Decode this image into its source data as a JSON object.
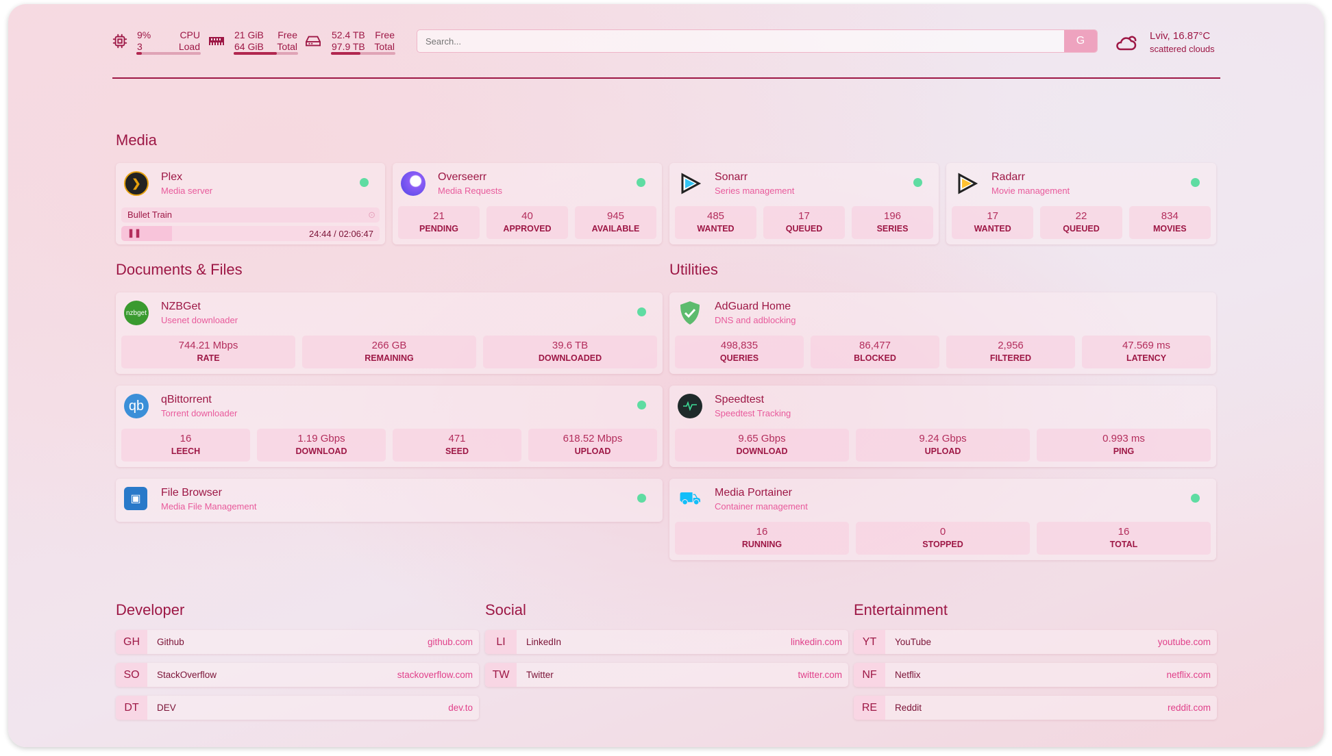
{
  "resources": {
    "cpu": {
      "icon": "cpu-icon",
      "value": "9%",
      "value2": "3",
      "label": "CPU",
      "label2": "Load",
      "percent": 9
    },
    "memory": {
      "icon": "memory-icon",
      "value": "21 GiB",
      "value2": "64 GiB",
      "label": "Free",
      "label2": "Total",
      "percent": 67
    },
    "disk": {
      "icon": "disk-icon",
      "value": "52.4 TB",
      "value2": "97.9 TB",
      "label": "Free",
      "label2": "Total",
      "percent": 46
    }
  },
  "search": {
    "placeholder": "Search...",
    "button": "G"
  },
  "weather": {
    "icon": "cloud-sun-icon",
    "location": "Lviv, 16.87°C",
    "condition": "scattered clouds"
  },
  "groups": {
    "media": "Media",
    "docs": "Documents & Files",
    "utilities": "Utilities",
    "developer": "Developer",
    "social": "Social",
    "entertainment": "Entertainment"
  },
  "services": {
    "plex": {
      "name": "Plex",
      "desc": "Media server",
      "status": "up",
      "now_playing": "Bullet Train",
      "time": "24:44 / 02:06:47",
      "progress": 19.5
    },
    "overseerr": {
      "name": "Overseerr",
      "desc": "Media Requests",
      "status": "up",
      "stats": [
        {
          "v": "21",
          "k": "PENDING"
        },
        {
          "v": "40",
          "k": "APPROVED"
        },
        {
          "v": "945",
          "k": "AVAILABLE"
        }
      ]
    },
    "sonarr": {
      "name": "Sonarr",
      "desc": "Series management",
      "status": "up",
      "stats": [
        {
          "v": "485",
          "k": "WANTED"
        },
        {
          "v": "17",
          "k": "QUEUED"
        },
        {
          "v": "196",
          "k": "SERIES"
        }
      ]
    },
    "radarr": {
      "name": "Radarr",
      "desc": "Movie management",
      "status": "up",
      "stats": [
        {
          "v": "17",
          "k": "WANTED"
        },
        {
          "v": "22",
          "k": "QUEUED"
        },
        {
          "v": "834",
          "k": "MOVIES"
        }
      ]
    },
    "nzbget": {
      "name": "NZBGet",
      "desc": "Usenet downloader",
      "icon_text": "nzbget",
      "status": "up",
      "stats": [
        {
          "v": "744.21 Mbps",
          "k": "RATE"
        },
        {
          "v": "266 GB",
          "k": "REMAINING"
        },
        {
          "v": "39.6 TB",
          "k": "DOWNLOADED"
        }
      ]
    },
    "qbittorrent": {
      "name": "qBittorrent",
      "desc": "Torrent downloader",
      "icon_text": "qb",
      "status": "up",
      "stats": [
        {
          "v": "16",
          "k": "LEECH"
        },
        {
          "v": "1.19 Gbps",
          "k": "DOWNLOAD"
        },
        {
          "v": "471",
          "k": "SEED"
        },
        {
          "v": "618.52 Mbps",
          "k": "UPLOAD"
        }
      ]
    },
    "filebrowser": {
      "name": "File Browser",
      "desc": "Media File Management",
      "status": "up"
    },
    "adguard": {
      "name": "AdGuard Home",
      "desc": "DNS and adblocking",
      "stats": [
        {
          "v": "498,835",
          "k": "QUERIES"
        },
        {
          "v": "86,477",
          "k": "BLOCKED"
        },
        {
          "v": "2,956",
          "k": "FILTERED"
        },
        {
          "v": "47.569 ms",
          "k": "LATENCY"
        }
      ]
    },
    "speedtest": {
      "name": "Speedtest",
      "desc": "Speedtest Tracking",
      "stats": [
        {
          "v": "9.65 Gbps",
          "k": "DOWNLOAD"
        },
        {
          "v": "9.24 Gbps",
          "k": "UPLOAD"
        },
        {
          "v": "0.993 ms",
          "k": "PING"
        }
      ]
    },
    "portainer": {
      "name": "Media Portainer",
      "desc": "Container management",
      "status": "up",
      "stats": [
        {
          "v": "16",
          "k": "RUNNING"
        },
        {
          "v": "0",
          "k": "STOPPED"
        },
        {
          "v": "16",
          "k": "TOTAL"
        }
      ]
    }
  },
  "bookmarks": {
    "developer": [
      {
        "abbr": "GH",
        "name": "Github",
        "url": "github.com"
      },
      {
        "abbr": "SO",
        "name": "StackOverflow",
        "url": "stackoverflow.com"
      },
      {
        "abbr": "DT",
        "name": "DEV",
        "url": "dev.to"
      }
    ],
    "social": [
      {
        "abbr": "LI",
        "name": "LinkedIn",
        "url": "linkedin.com"
      },
      {
        "abbr": "TW",
        "name": "Twitter",
        "url": "twitter.com"
      }
    ],
    "entertainment": [
      {
        "abbr": "YT",
        "name": "YouTube",
        "url": "youtube.com"
      },
      {
        "abbr": "NF",
        "name": "Netflix",
        "url": "netflix.com"
      },
      {
        "abbr": "RE",
        "name": "Reddit",
        "url": "reddit.com"
      }
    ]
  },
  "colors": {
    "accent": "#9d1745",
    "link": "#e0408a",
    "status_up": "#5fdca2",
    "search_button": "#eea3bf"
  }
}
